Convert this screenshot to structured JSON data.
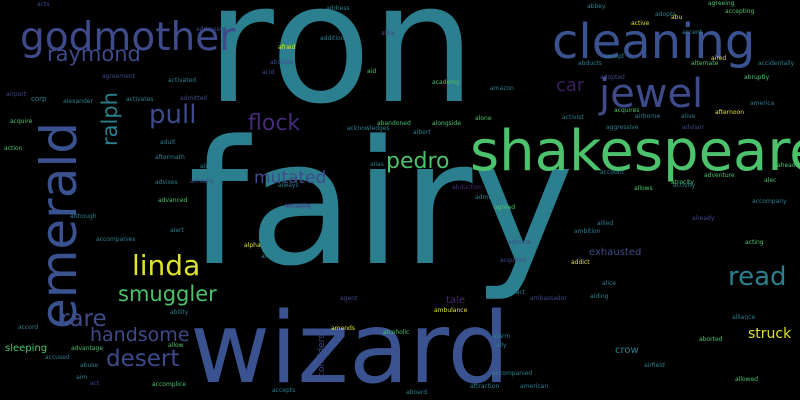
{
  "palette": {
    "background": "#000000",
    "teal": "#2c7f8e",
    "blue": "#3b5290",
    "green": "#4cc26c",
    "yellow": "#dde32a",
    "purple": "#472a79",
    "darkpurple": "#3a1f5e",
    "indigo": "#3e4a89"
  },
  "words": {
    "ron": "ron",
    "fairy": "fairy",
    "wizard": "wizard",
    "shakespeare": "shakespeare",
    "emerald": "emerald",
    "cleaning": "cleaning",
    "godmother": "godmother",
    "raymond": "raymond",
    "jewel": "jewel",
    "car": "car",
    "ralph": "ralph",
    "pull": "pull",
    "flock": "flock",
    "pedro": "pedro",
    "mutated": "mutated",
    "linda": "linda",
    "smuggler": "smuggler",
    "read": "read",
    "rare": "rare",
    "handsome": "handsome",
    "desert": "desert",
    "struck": "struck",
    "exhausted": "exhausted",
    "crow": "crow",
    "sleeping": "sleeping",
    "considers": "considers",
    "tale": "tale",
    "accompanied": "accompanied",
    "aid": "aid",
    "afraid": "afraid",
    "alliance": "alliance",
    "acting": "acting",
    "activated": "activated",
    "activates": "activates",
    "admitted": "admitted",
    "abruptly": "abruptly",
    "ability": "ability",
    "actor": "actor",
    "alexander": "alexander",
    "acquire": "acquire",
    "corp": "corp",
    "airport": "airport",
    "advanced": "advanced",
    "advises": "advises",
    "although": "although",
    "accompanies": "accompanies",
    "accomplice": "accomplice",
    "advantage": "advantage",
    "accused": "accused",
    "amends": "amends",
    "alcoholic": "alcoholic",
    "abandoned": "abandoned",
    "alongside": "alongside",
    "acknowledges": "acknowledges",
    "agreeing": "agreeing",
    "accepting": "accepting",
    "active": "active",
    "adopts": "adopts",
    "alternate": "alternate",
    "accidentally": "accidentally",
    "abducts": "abducts",
    "afternoon": "afternoon",
    "america": "america",
    "adventure": "adventure",
    "accompany": "accompany",
    "alien": "alien",
    "alpha": "alpha",
    "admiral": "admiral",
    "ambassador": "ambassador",
    "addict": "addict",
    "ambition": "ambition",
    "allied": "allied",
    "aged": "aged",
    "agreed": "agreed",
    "acquired": "acquired",
    "admitting": "admitting",
    "abduction": "abduction",
    "account": "account",
    "allows": "allows",
    "atrocity": "atrocity",
    "activity": "activity",
    "already": "already",
    "alec": "alec",
    "aired": "aired",
    "adult": "adult",
    "aftermath": "aftermath",
    "advisor": "advisor",
    "ambulance": "ambulance",
    "allow": "allow",
    "accepts": "accepts",
    "airborne": "airborne",
    "aborted": "aborted",
    "allowed": "allowed",
    "alice": "alice",
    "airfield": "airfield",
    "abbey": "abbey",
    "accent": "accent",
    "alert": "alert",
    "always": "always",
    "attract": "attract",
    "agent": "agent",
    "aiding": "aiding",
    "actually": "actually",
    "accurate": "accurate",
    "alibi": "alibi",
    "action": "action",
    "academy": "academy",
    "adopted": "adopted",
    "acquires": "acquires",
    "aggressive": "aggressive",
    "activist": "activist",
    "accord": "accord",
    "address": "address",
    "additional": "additional",
    "addresses": "addresses",
    "abusive": "abusive",
    "albert": "albert",
    "alone": "alone",
    "alike": "alike",
    "ally": "ally",
    "alarm": "alarm",
    "amazon": "amazon",
    "alive": "alive",
    "agreement": "agreement",
    "admires": "admires",
    "abu": "abu",
    "alter": "alter",
    "acts": "acts",
    "accept": "accept",
    "accusing": "accusing",
    "accepted": "accepted",
    "ago": "ago",
    "alias": "alias",
    "adapted": "adapted",
    "aliens": "aliens",
    "ahead": "ahead",
    "aim": "aim",
    "ale": "ale",
    "acid": "acid",
    "abe": "abe",
    "ace": "ace",
    "abuse": "abuse",
    "act": "act",
    "aboard": "aboard",
    "attraction": "attraction",
    "american": "american",
    "ambush": "ambush",
    "abducted": "abducted",
    "aircraft": "aircraft",
    "accepting_ii": "aired",
    "alright": "alright",
    "alliance_ii": "alliance",
    "accidents": "accidents",
    "armed": "armed",
    "abilities": "abilities",
    "annoyed": "annoyed",
    "accurately": "accurately",
    "accomplished": "accomplished",
    "acts_ii": "acts"
  }
}
